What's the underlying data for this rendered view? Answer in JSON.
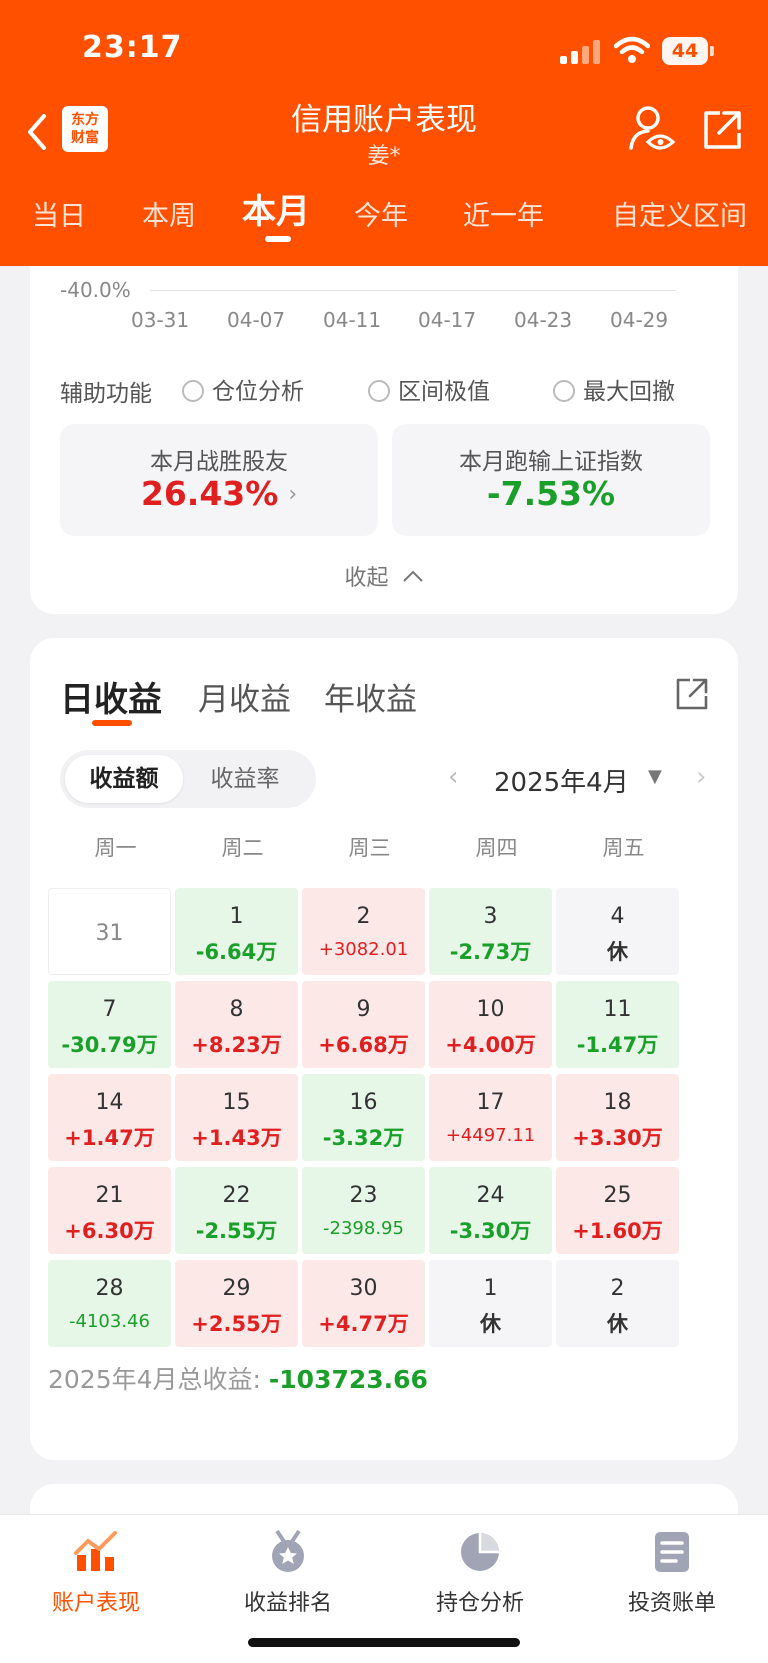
{
  "status_bar": {
    "time": "23:17",
    "battery": "44"
  },
  "header": {
    "logo_line1": "东方",
    "logo_line2": "财富",
    "title": "信用账户表现",
    "subtitle": "姜*"
  },
  "period_tabs": [
    "当日",
    "本周",
    "本月",
    "今年",
    "近一年",
    "自定义区间"
  ],
  "active_period_tab": "本月",
  "chart_area": {
    "y_label": "-40.0%",
    "x_ticks": [
      "03-31",
      "04-07",
      "04-11",
      "04-17",
      "04-23",
      "04-29"
    ]
  },
  "aux": {
    "label": "辅助功能",
    "options": [
      "仓位分析",
      "区间极值",
      "最大回撤"
    ]
  },
  "stats": {
    "beat_label": "本月战胜股友",
    "beat_value": "26.43%",
    "lag_label": "本月跑输上证指数",
    "lag_value": "-7.53%",
    "beat_color": "#e02020",
    "lag_color": "#1a9f2a"
  },
  "collapse_label": "收起",
  "returns": {
    "tabs": [
      "日收益",
      "月收益",
      "年收益"
    ],
    "segment": [
      "收益额",
      "收益率"
    ],
    "month": "2025年4月",
    "weekdays": [
      "周一",
      "周二",
      "周三",
      "周四",
      "周五"
    ],
    "calendar": [
      [
        {
          "day": "31",
          "value": "",
          "type": "blank"
        },
        {
          "day": "1",
          "value": "-6.64万",
          "type": "green"
        },
        {
          "day": "2",
          "value": "+3082.01",
          "type": "red",
          "small": true
        },
        {
          "day": "3",
          "value": "-2.73万",
          "type": "green"
        },
        {
          "day": "4",
          "value": "休",
          "type": "rest"
        }
      ],
      [
        {
          "day": "7",
          "value": "-30.79万",
          "type": "green"
        },
        {
          "day": "8",
          "value": "+8.23万",
          "type": "red"
        },
        {
          "day": "9",
          "value": "+6.68万",
          "type": "red"
        },
        {
          "day": "10",
          "value": "+4.00万",
          "type": "red"
        },
        {
          "day": "11",
          "value": "-1.47万",
          "type": "green"
        }
      ],
      [
        {
          "day": "14",
          "value": "+1.47万",
          "type": "red"
        },
        {
          "day": "15",
          "value": "+1.43万",
          "type": "red"
        },
        {
          "day": "16",
          "value": "-3.32万",
          "type": "green"
        },
        {
          "day": "17",
          "value": "+4497.11",
          "type": "red",
          "small": true
        },
        {
          "day": "18",
          "value": "+3.30万",
          "type": "red"
        }
      ],
      [
        {
          "day": "21",
          "value": "+6.30万",
          "type": "red"
        },
        {
          "day": "22",
          "value": "-2.55万",
          "type": "green"
        },
        {
          "day": "23",
          "value": "-2398.95",
          "type": "green",
          "small": true
        },
        {
          "day": "24",
          "value": "-3.30万",
          "type": "green"
        },
        {
          "day": "25",
          "value": "+1.60万",
          "type": "red"
        }
      ],
      [
        {
          "day": "28",
          "value": "-4103.46",
          "type": "green",
          "small": true
        },
        {
          "day": "29",
          "value": "+2.55万",
          "type": "red"
        },
        {
          "day": "30",
          "value": "+4.77万",
          "type": "red"
        },
        {
          "day": "1",
          "value": "休",
          "type": "rest"
        },
        {
          "day": "2",
          "value": "休",
          "type": "rest"
        }
      ]
    ],
    "total_label": "2025年4月总收益:",
    "total_value": "-103723.66"
  },
  "bottom_nav": [
    {
      "label": "账户表现",
      "icon": "chart-icon",
      "active": true
    },
    {
      "label": "收益排名",
      "icon": "medal-icon",
      "active": false
    },
    {
      "label": "持仓分析",
      "icon": "pie-icon",
      "active": false
    },
    {
      "label": "投资账单",
      "icon": "bill-icon",
      "active": false
    }
  ],
  "colors": {
    "brand": "#ff5000",
    "gain": "#e02020",
    "loss": "#1a9f2a"
  }
}
